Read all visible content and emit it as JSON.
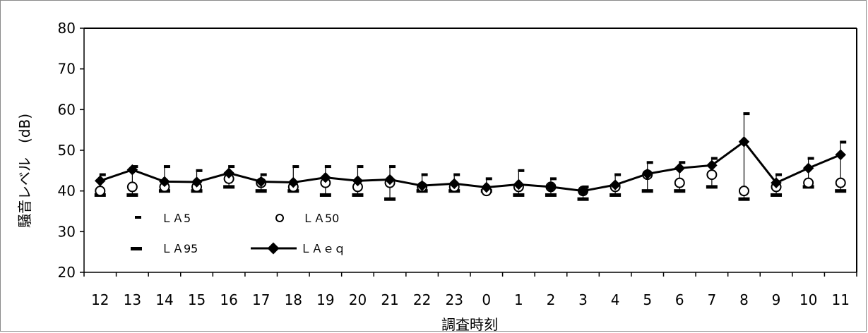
{
  "chart_data": {
    "type": "line",
    "xlabel": "調査時刻",
    "ylabel": "騒音レベル　(dB)",
    "ylim": [
      20,
      80
    ],
    "yticks": [
      20,
      30,
      40,
      50,
      60,
      70,
      80
    ],
    "categories": [
      "12",
      "13",
      "14",
      "15",
      "16",
      "17",
      "18",
      "19",
      "20",
      "21",
      "22",
      "23",
      "0",
      "1",
      "2",
      "3",
      "4",
      "5",
      "6",
      "7",
      "8",
      "9",
      "10",
      "11"
    ],
    "grid": false,
    "legend_position": "bottom-left",
    "series": [
      {
        "name": "ＬＡ5",
        "marker": "small-dash",
        "values": [
          44,
          46,
          46,
          45,
          46,
          44,
          46,
          46,
          46,
          46,
          44,
          44,
          43,
          45,
          43,
          41,
          44,
          47,
          47,
          48,
          59,
          44,
          48,
          52
        ]
      },
      {
        "name": "ＬＡ50",
        "marker": "open-circle",
        "values": [
          40,
          41,
          41,
          41,
          43,
          42,
          41,
          42,
          41,
          42,
          41,
          41,
          40,
          41,
          41,
          40,
          41,
          44,
          42,
          44,
          40,
          41,
          42,
          42
        ]
      },
      {
        "name": "ＬＡ95",
        "marker": "wide-dash",
        "values": [
          39,
          39,
          40,
          40,
          41,
          40,
          40,
          39,
          39,
          38,
          40,
          40,
          40,
          39,
          39,
          38,
          39,
          40,
          40,
          41,
          38,
          39,
          41,
          40
        ]
      },
      {
        "name": "ＬＡｅｑ",
        "marker": "filled-diamond-line",
        "values": [
          42.5,
          45.2,
          42.3,
          42.2,
          44.4,
          42.3,
          42.1,
          43.3,
          42.5,
          42.8,
          41.3,
          41.8,
          40.9,
          41.6,
          41.0,
          40.0,
          41.5,
          44.2,
          45.6,
          46.3,
          52.1,
          42.0,
          45.6,
          48.9
        ]
      }
    ]
  },
  "colors": {
    "ink": "#000000",
    "frame": "#8a8a8a",
    "background": "#ffffff"
  }
}
